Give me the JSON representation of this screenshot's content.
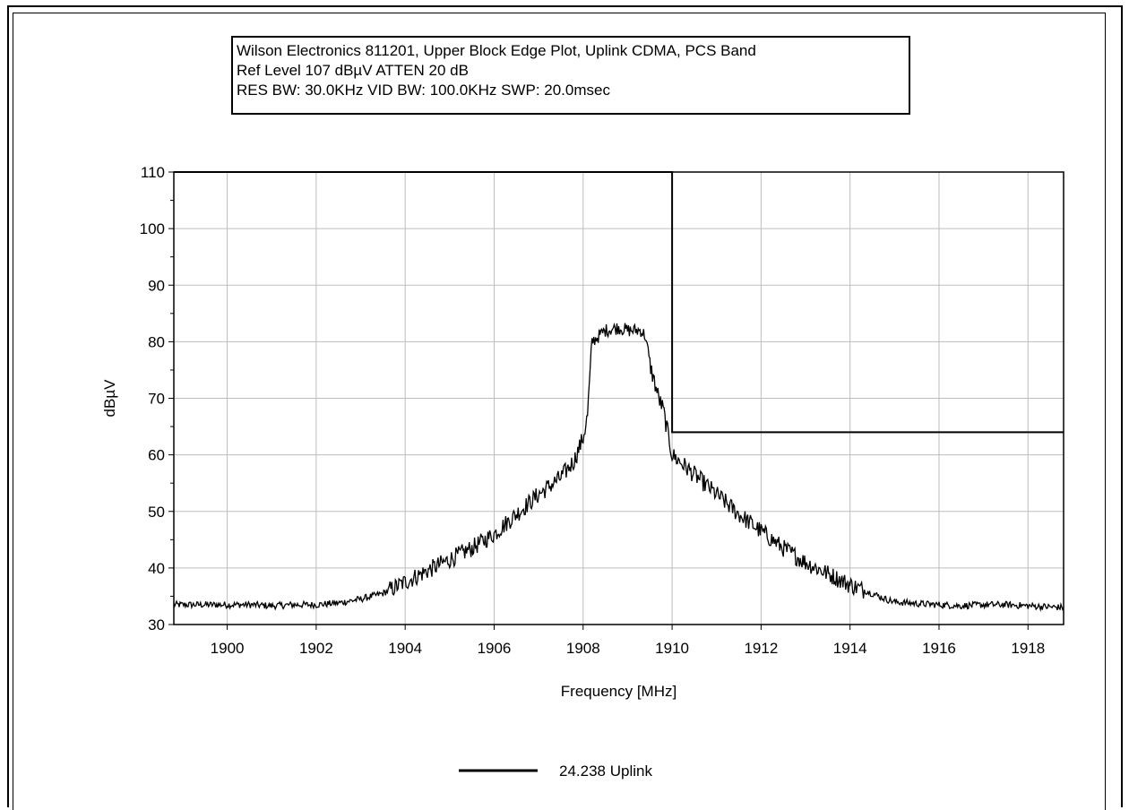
{
  "header": {
    "line1": "Wilson Electronics 811201, Upper Block Edge Plot, Uplink CDMA, PCS Band",
    "line2": "Ref Level 107 dBµV    ATTEN 20 dB",
    "line3": "RES BW: 30.0KHz  VID BW: 100.0KHz  SWP: 20.0msec"
  },
  "chart_data": {
    "type": "line",
    "title": "",
    "xlabel": "Frequency [MHz]",
    "ylabel": "dBµV",
    "xlim": [
      1898.8,
      1918.8
    ],
    "ylim": [
      30,
      110
    ],
    "x_ticks": [
      1900,
      1902,
      1904,
      1906,
      1908,
      1910,
      1912,
      1914,
      1916,
      1918
    ],
    "y_ticks": [
      30,
      40,
      50,
      60,
      70,
      80,
      90,
      100,
      110
    ],
    "grid": true,
    "series": [
      {
        "name": "24.238 Uplink",
        "color": "#000000",
        "x": [
          1898.8,
          1899.5,
          1900.0,
          1900.5,
          1901.0,
          1901.5,
          1902.0,
          1902.5,
          1903.0,
          1903.5,
          1904.0,
          1904.5,
          1905.0,
          1905.5,
          1906.0,
          1906.5,
          1907.0,
          1907.5,
          1907.8,
          1908.0,
          1908.1,
          1908.2,
          1908.5,
          1908.8,
          1909.0,
          1909.3,
          1909.4,
          1909.5,
          1909.7,
          1909.8,
          1910.0,
          1910.5,
          1911.0,
          1911.5,
          1912.0,
          1912.5,
          1913.0,
          1913.5,
          1914.0,
          1914.5,
          1914.8,
          1915.0,
          1915.5,
          1916.0,
          1916.5,
          1917.0,
          1917.5,
          1918.0,
          1918.8
        ],
        "y": [
          33.5,
          33.5,
          33.5,
          33.5,
          33.3,
          33.5,
          33.5,
          33.8,
          34.5,
          35.5,
          37.5,
          39.5,
          41.5,
          43.5,
          46.0,
          49.5,
          53.0,
          56.0,
          59.0,
          63.0,
          67.0,
          80.0,
          82.0,
          82.5,
          82.0,
          82.0,
          81.0,
          76.0,
          70.0,
          68.0,
          60.0,
          56.5,
          53.0,
          49.5,
          46.5,
          43.5,
          41.0,
          39.0,
          37.0,
          35.5,
          34.5,
          34.0,
          33.7,
          33.5,
          33.3,
          33.5,
          33.5,
          33.3,
          33.0
        ]
      }
    ],
    "limit_line": {
      "x": [
        1898.8,
        1910.0,
        1910.0,
        1918.8
      ],
      "y": [
        110,
        110,
        64,
        64
      ],
      "color": "#000000"
    },
    "legend": {
      "position": "bottom-center"
    }
  }
}
